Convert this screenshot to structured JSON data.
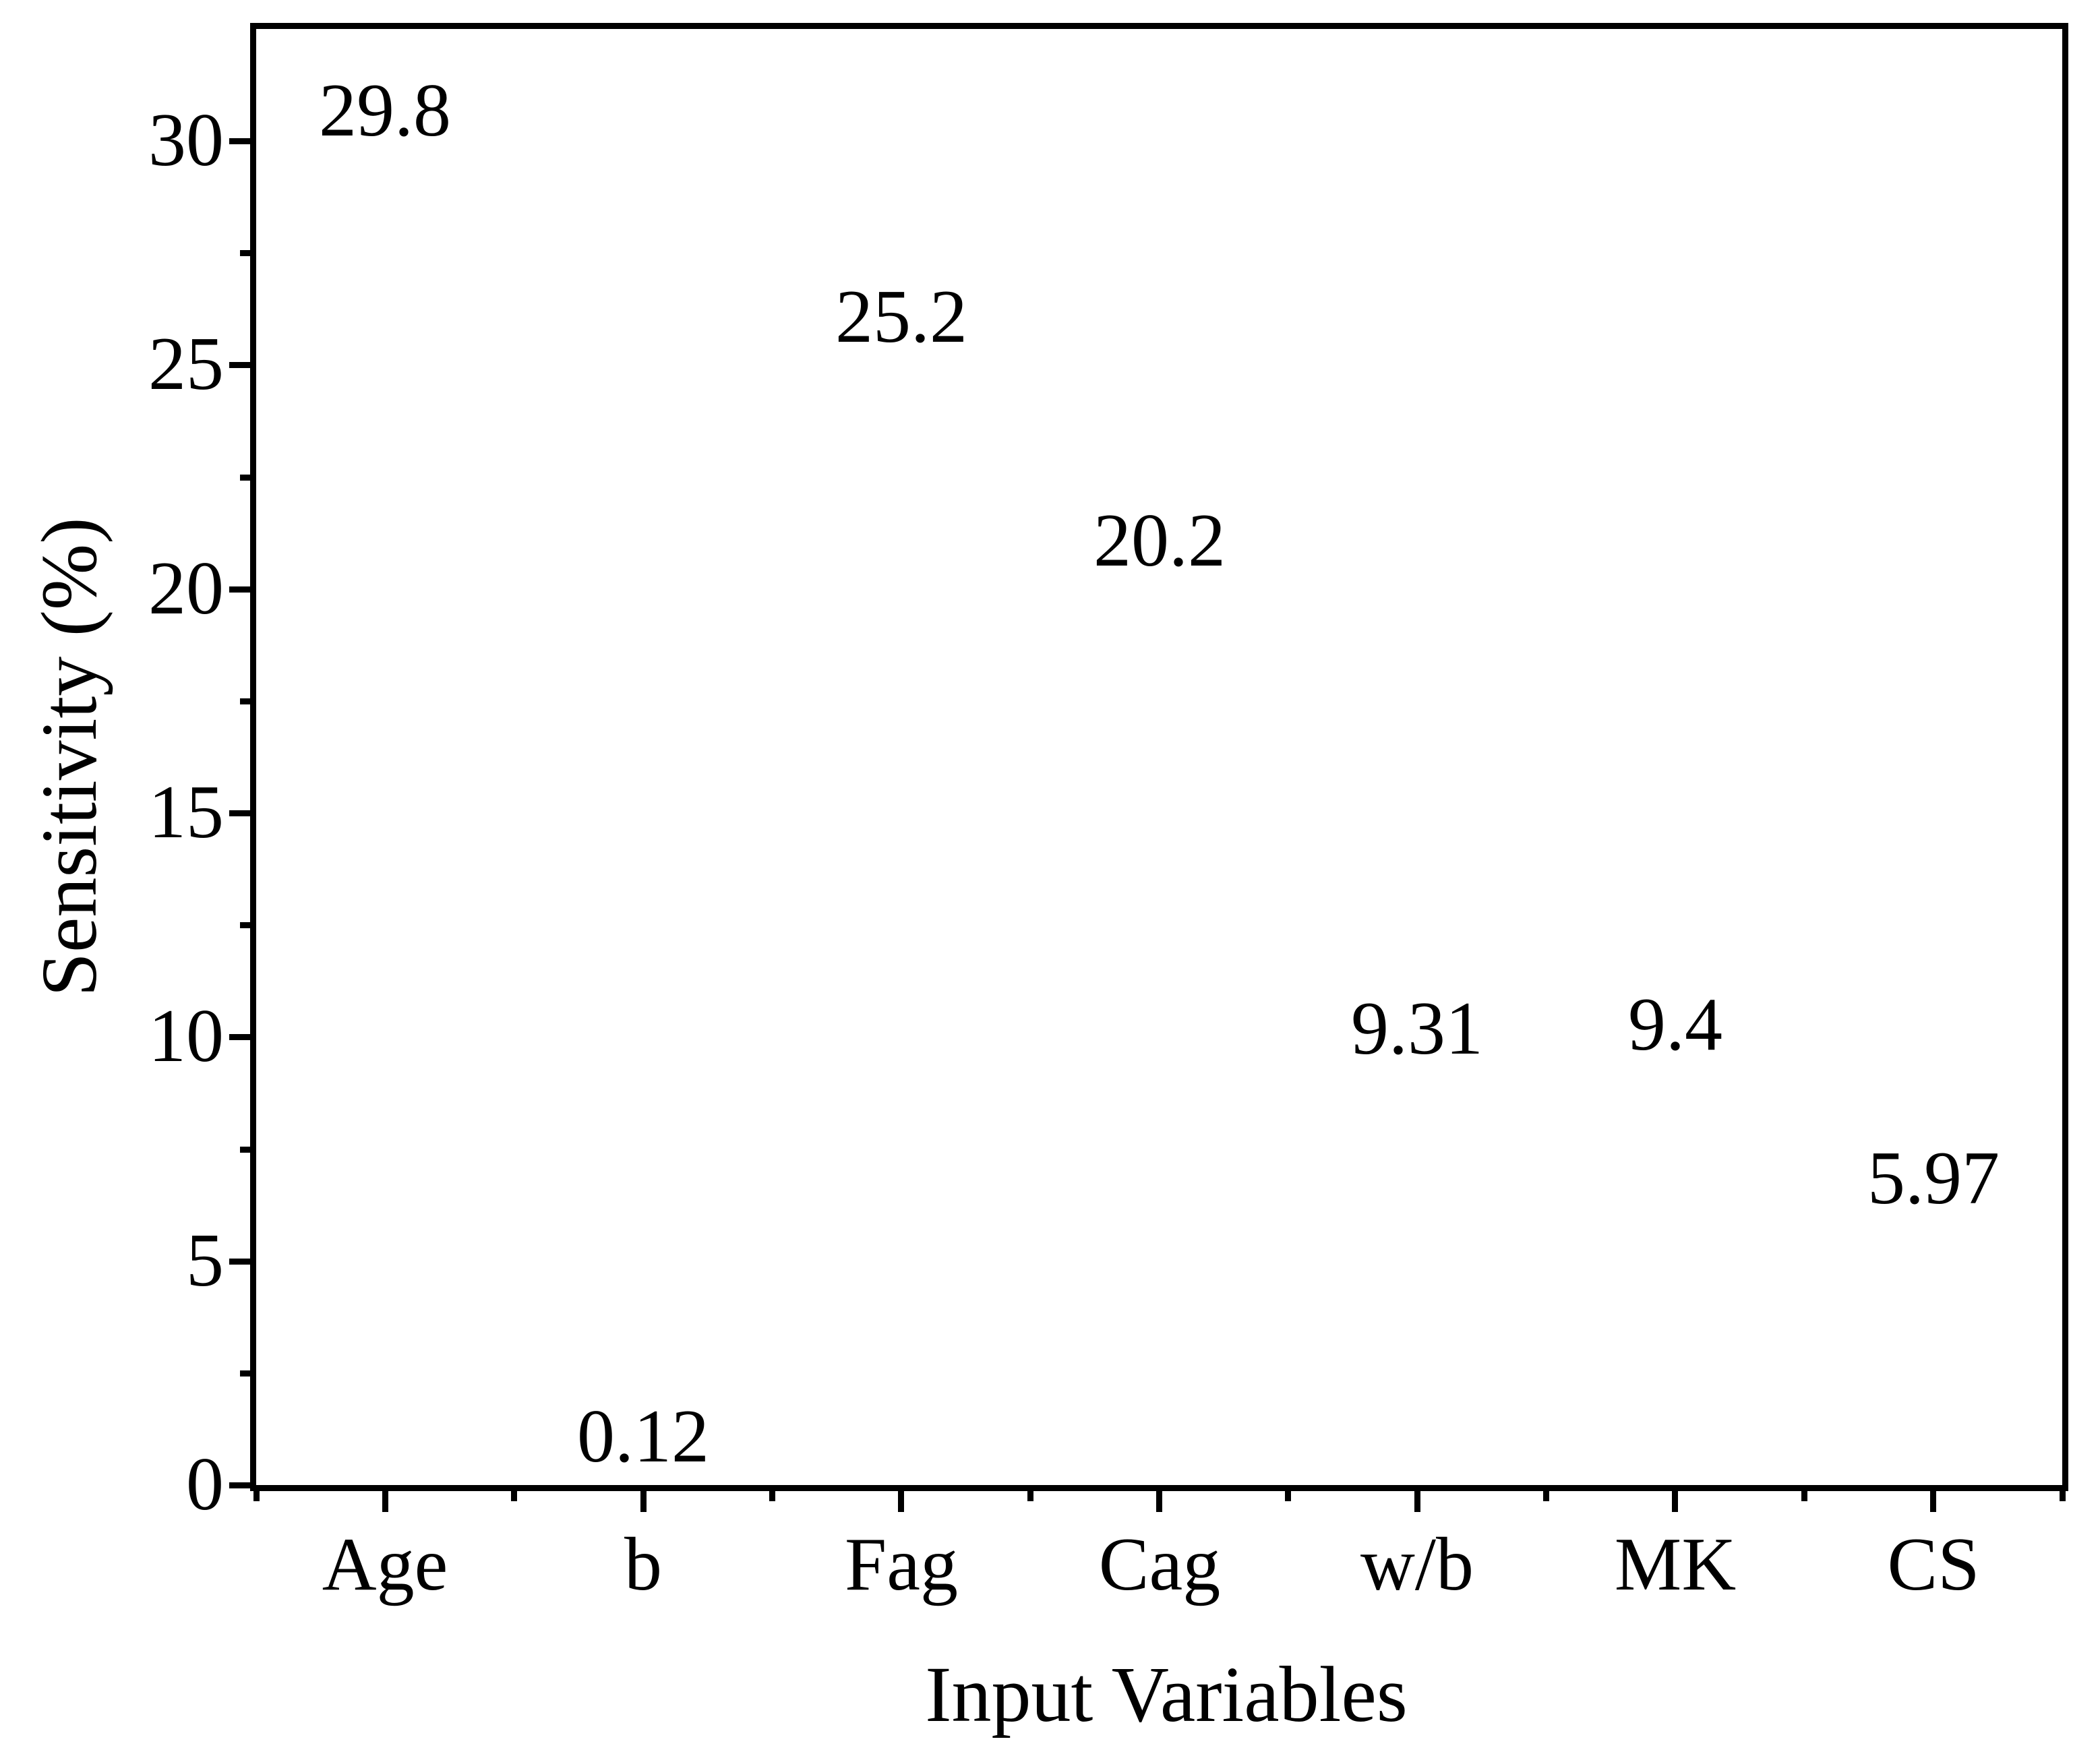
{
  "figure": {
    "background": "#FFFFFF"
  },
  "chart_data": {
    "type": "bar",
    "title": "",
    "xlabel": "Input Variables",
    "ylabel": "Sensitivity (%)",
    "categories": [
      "Age",
      "b",
      "Fag",
      "Cag",
      "w/b",
      "MK",
      "CS"
    ],
    "values": [
      29.8,
      0.12,
      25.2,
      20.2,
      9.31,
      9.4,
      5.97
    ],
    "value_labels": [
      "29.8",
      "0.12",
      "25.2",
      "20.2",
      "9.31",
      "9.4",
      "5.97"
    ],
    "ylim": [
      0,
      32.5
    ],
    "y_major_ticks": [
      0,
      5,
      10,
      15,
      20,
      25,
      30
    ],
    "y_major_tick_labels": [
      "0",
      "5",
      "10",
      "15",
      "20",
      "25",
      "30"
    ],
    "y_minor_ticks": [
      2.5,
      7.5,
      12.5,
      17.5,
      22.5,
      27.5
    ],
    "x_minor_ticks_at_category_boundaries": true,
    "grid": false,
    "legend": "none",
    "bar_fill": "#FCCB92",
    "bar_border": "#000000",
    "axis_color": "#000000",
    "text_color": "#000000"
  }
}
